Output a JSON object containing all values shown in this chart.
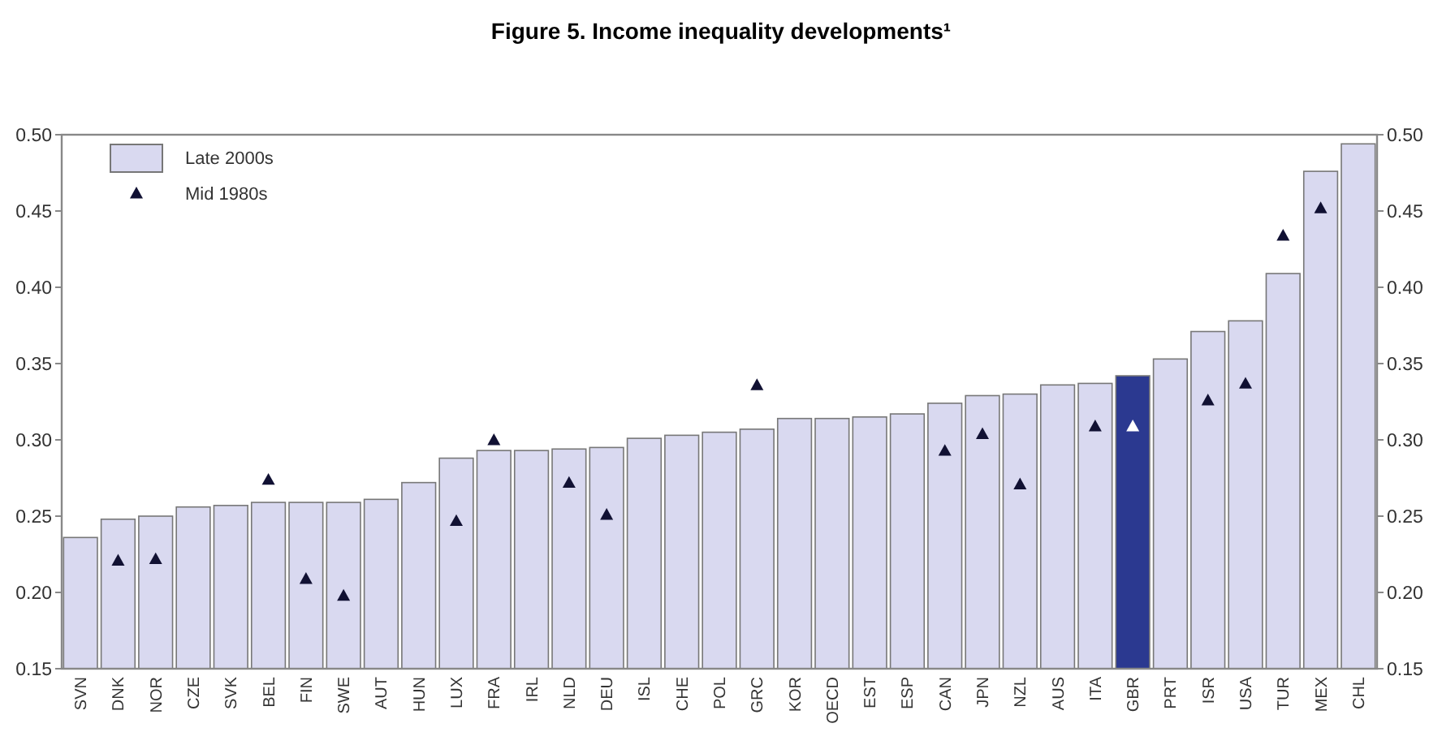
{
  "chart_data": {
    "type": "bar",
    "title": "Figure 5. Income inequality developments¹",
    "categories": [
      "SVN",
      "DNK",
      "NOR",
      "CZE",
      "SVK",
      "BEL",
      "FIN",
      "SWE",
      "AUT",
      "HUN",
      "LUX",
      "FRA",
      "IRL",
      "NLD",
      "DEU",
      "ISL",
      "CHE",
      "POL",
      "GRC",
      "KOR",
      "OECD",
      "EST",
      "ESP",
      "CAN",
      "JPN",
      "NZL",
      "AUS",
      "ITA",
      "GBR",
      "PRT",
      "ISR",
      "USA",
      "TUR",
      "MEX",
      "CHL"
    ],
    "series": [
      {
        "name": "Late 2000s",
        "color": "#d9d9f0",
        "colors": [
          "#d9d9f0",
          "#d9d9f0",
          "#d9d9f0",
          "#d9d9f0",
          "#d9d9f0",
          "#d9d9f0",
          "#d9d9f0",
          "#d9d9f0",
          "#d9d9f0",
          "#d9d9f0",
          "#d9d9f0",
          "#d9d9f0",
          "#d9d9f0",
          "#d9d9f0",
          "#d9d9f0",
          "#d9d9f0",
          "#d9d9f0",
          "#d9d9f0",
          "#d9d9f0",
          "#d9d9f0",
          "#d9d9f0",
          "#d9d9f0",
          "#d9d9f0",
          "#d9d9f0",
          "#d9d9f0",
          "#d9d9f0",
          "#d9d9f0",
          "#d9d9f0",
          "#2b3990",
          "#d9d9f0",
          "#d9d9f0",
          "#d9d9f0",
          "#d9d9f0",
          "#d9d9f0",
          "#d9d9f0"
        ],
        "values": [
          0.236,
          0.248,
          0.25,
          0.256,
          0.257,
          0.259,
          0.259,
          0.259,
          0.261,
          0.272,
          0.288,
          0.293,
          0.293,
          0.294,
          0.295,
          0.301,
          0.303,
          0.305,
          0.307,
          0.314,
          0.314,
          0.315,
          0.317,
          0.324,
          0.329,
          0.33,
          0.336,
          0.337,
          0.342,
          0.353,
          0.371,
          0.378,
          0.409,
          0.476,
          0.494
        ]
      },
      {
        "name": "Mid 1980s",
        "type": "scatter",
        "marker": "triangle",
        "color": "#111133",
        "colors": [
          "#111133",
          "#111133",
          "#111133",
          "#111133",
          "#111133",
          "#111133",
          "#111133",
          "#111133",
          "#111133",
          "#111133",
          "#111133",
          "#111133",
          "#111133",
          "#111133",
          "#111133",
          "#111133",
          "#111133",
          "#111133",
          "#111133",
          "#111133",
          "#111133",
          "#111133",
          "#111133",
          "#111133",
          "#111133",
          "#111133",
          "#111133",
          "#111133",
          "#ffffff",
          "#111133",
          "#111133",
          "#111133",
          "#111133",
          "#111133",
          "#111133"
        ],
        "values": [
          null,
          0.221,
          0.222,
          null,
          null,
          0.274,
          0.209,
          0.198,
          null,
          null,
          0.247,
          0.3,
          null,
          0.272,
          0.251,
          null,
          null,
          null,
          0.336,
          null,
          null,
          null,
          null,
          0.293,
          0.304,
          0.271,
          null,
          0.309,
          0.309,
          null,
          0.326,
          0.337,
          0.434,
          0.452,
          null
        ]
      }
    ],
    "ylim": [
      0.15,
      0.5
    ],
    "yticks": [
      {
        "value": 0.15,
        "label": "0.15"
      },
      {
        "value": 0.2,
        "label": "0.20"
      },
      {
        "value": 0.25,
        "label": "0.25"
      },
      {
        "value": 0.3,
        "label": "0.30"
      },
      {
        "value": 0.35,
        "label": "0.35"
      },
      {
        "value": 0.4,
        "label": "0.40"
      },
      {
        "value": 0.45,
        "label": "0.45"
      },
      {
        "value": 0.5,
        "label": "0.50"
      }
    ],
    "y2lim": [
      0.15,
      0.5
    ],
    "y2ticks": [
      {
        "value": 0.15,
        "label": "0.15"
      },
      {
        "value": 0.2,
        "label": "0.20"
      },
      {
        "value": 0.25,
        "label": "0.25"
      },
      {
        "value": 0.3,
        "label": "0.30"
      },
      {
        "value": 0.35,
        "label": "0.35"
      },
      {
        "value": 0.4,
        "label": "0.40"
      },
      {
        "value": 0.45,
        "label": "0.45"
      },
      {
        "value": 0.5,
        "label": "0.50"
      }
    ],
    "grid": false,
    "legend": "top left"
  }
}
